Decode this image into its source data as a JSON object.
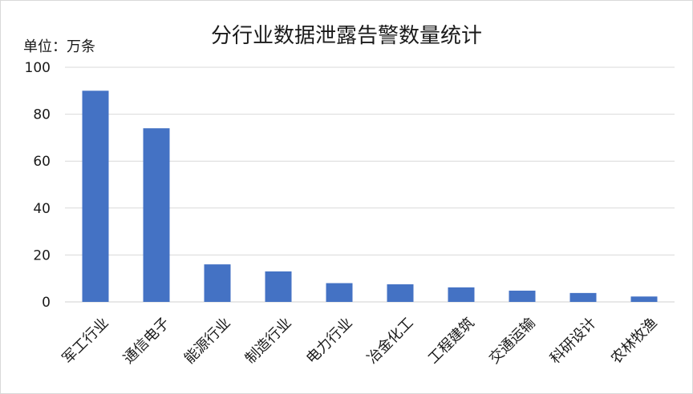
{
  "chart_data": {
    "type": "bar",
    "title": "分行业数据泄露告警数量统计",
    "unit_label": "单位：万条",
    "categories": [
      "军工行业",
      "通信电子",
      "能源行业",
      "制造行业",
      "电力行业",
      "冶金化工",
      "工程建筑",
      "交通运输",
      "科研设计",
      "农林牧渔"
    ],
    "values": [
      90,
      74,
      16,
      13,
      8,
      7.5,
      6.2,
      4.8,
      3.8,
      2.3
    ],
    "ylim": [
      0,
      100
    ],
    "yticks": [
      0,
      20,
      40,
      60,
      80,
      100
    ],
    "grid": true,
    "legend": "none",
    "bar_color": "#4472c4"
  }
}
